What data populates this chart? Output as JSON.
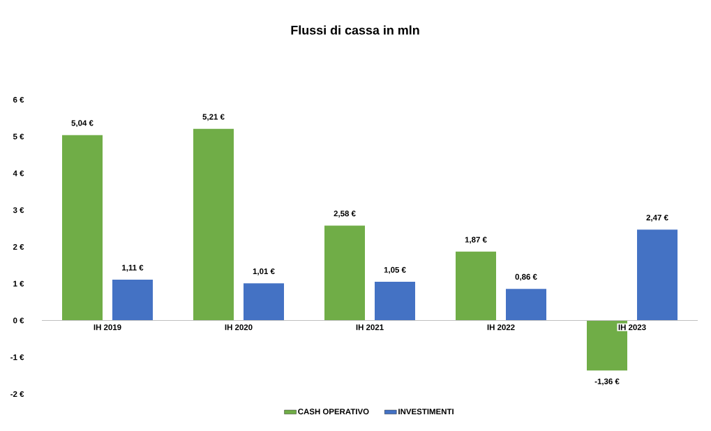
{
  "chart_data": {
    "type": "bar",
    "title": "Flussi di cassa in mln",
    "categories": [
      "IH 2019",
      "IH 2020",
      "IH 2021",
      "IH 2022",
      "IH 2023"
    ],
    "series": [
      {
        "name": "CASH OPERATIVO",
        "color": "#70ad47",
        "values": [
          5.04,
          5.21,
          2.58,
          1.87,
          -1.36
        ],
        "value_labels": [
          "5,04 €",
          "5,21 €",
          "2,58 €",
          "1,87 €",
          "-1,36 €"
        ]
      },
      {
        "name": "INVESTIMENTI",
        "color": "#4472c4",
        "values": [
          1.11,
          1.01,
          1.05,
          0.86,
          2.47
        ],
        "value_labels": [
          "1,11 €",
          "1,01 €",
          "1,05 €",
          "0,86 €",
          "2,47 €"
        ]
      }
    ],
    "ylim": [
      -2,
      6
    ],
    "yticks": [
      {
        "value": -2,
        "label": "-2 €"
      },
      {
        "value": -1,
        "label": "-1 €"
      },
      {
        "value": 0,
        "label": "0 €"
      },
      {
        "value": 1,
        "label": "1 €"
      },
      {
        "value": 2,
        "label": "2 €"
      },
      {
        "value": 3,
        "label": "3 €"
      },
      {
        "value": 4,
        "label": "4 €"
      },
      {
        "value": 5,
        "label": "5 €"
      },
      {
        "value": 6,
        "label": "6 €"
      }
    ],
    "legend": "bottom"
  }
}
